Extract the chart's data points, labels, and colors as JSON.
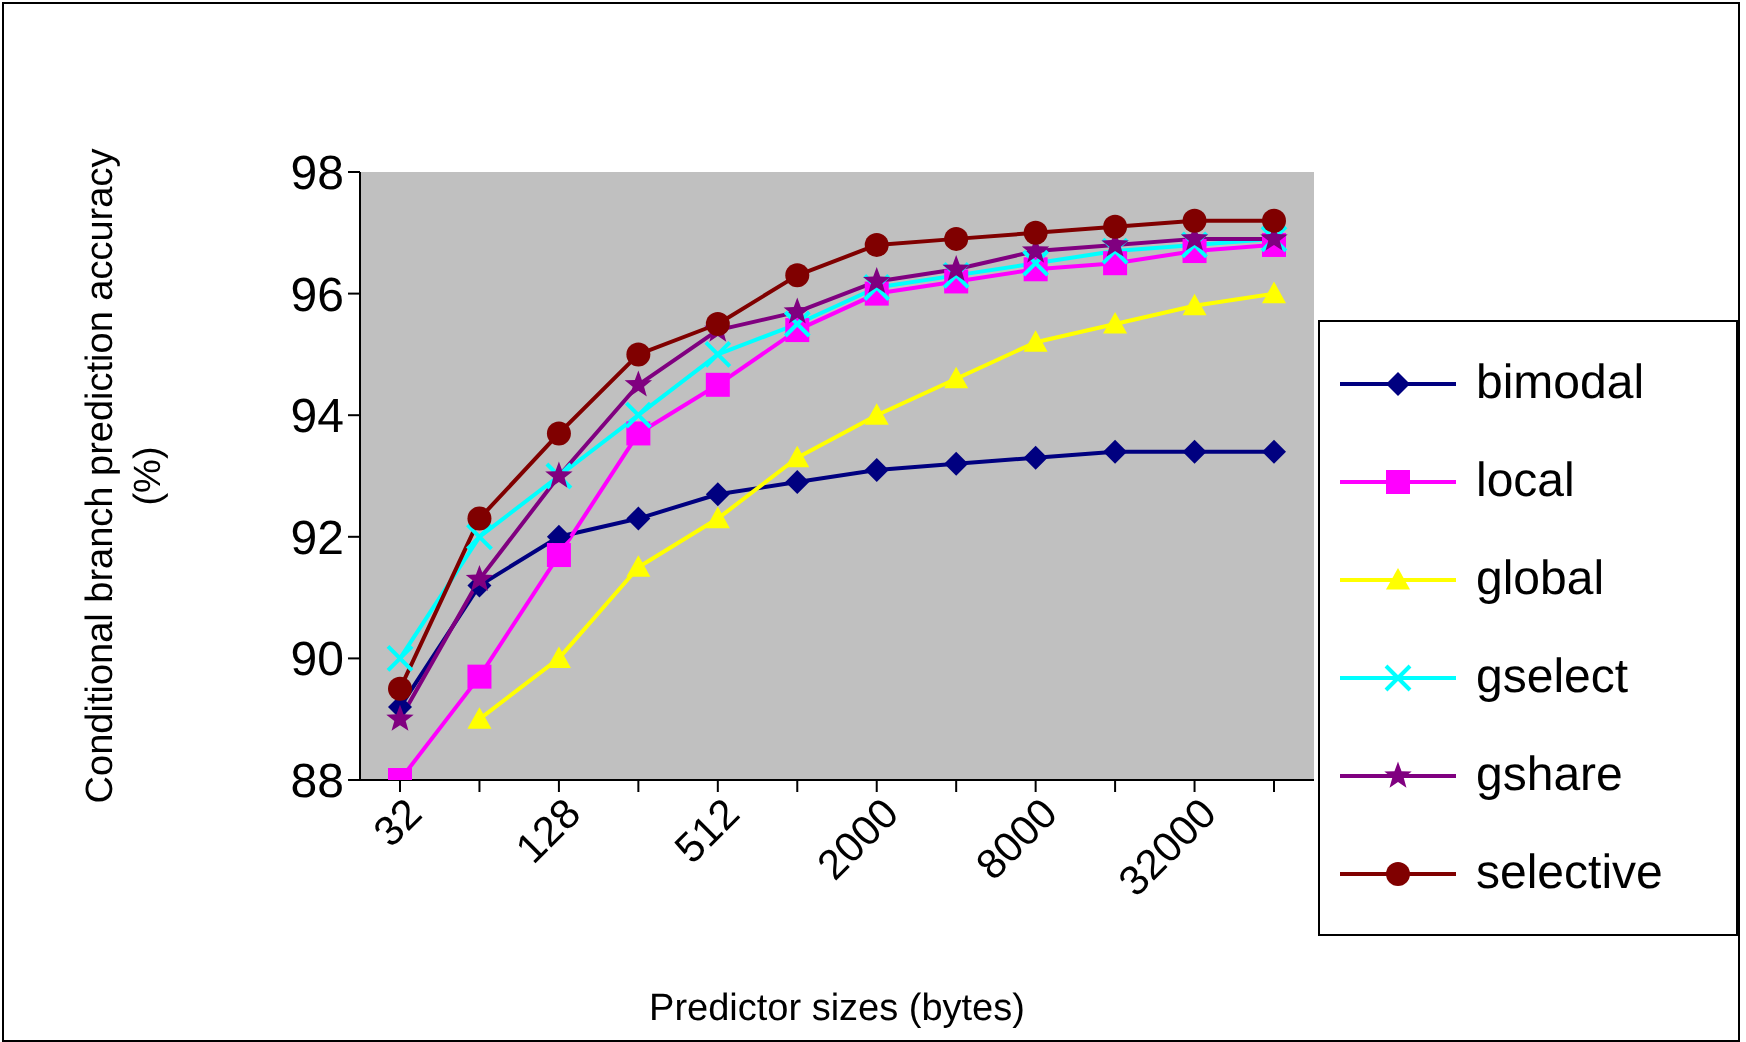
{
  "chart_data": {
    "type": "line",
    "xlabel": "Predictor sizes (bytes)",
    "ylabel": "Conditional branch prediction accuracy (%)",
    "categories": [
      "32",
      null,
      "128",
      null,
      "512",
      null,
      "2000",
      null,
      "8000",
      null,
      "32000",
      null
    ],
    "ylim": [
      88,
      98
    ],
    "yticks": [
      88,
      90,
      92,
      94,
      96,
      98
    ],
    "grid": false,
    "legend": "right",
    "series": [
      {
        "name": "bimodal",
        "color": "#000080",
        "marker": "diamond",
        "values": [
          89.2,
          91.2,
          92.0,
          92.3,
          92.7,
          92.9,
          93.1,
          93.2,
          93.3,
          93.4,
          93.4,
          93.4
        ]
      },
      {
        "name": "local",
        "color": "#ff00ff",
        "marker": "square",
        "values": [
          88.0,
          89.7,
          91.7,
          93.7,
          94.5,
          95.4,
          96.0,
          96.2,
          96.4,
          96.5,
          96.7,
          96.8
        ]
      },
      {
        "name": "global",
        "color": "#ffff00",
        "marker": "triangle",
        "values": [
          null,
          89.0,
          90.0,
          91.5,
          92.3,
          93.3,
          94.0,
          94.6,
          95.2,
          95.5,
          95.8,
          96.0
        ]
      },
      {
        "name": "gselect",
        "color": "#00ffff",
        "marker": "cross",
        "values": [
          90.0,
          92.0,
          93.0,
          94.0,
          95.0,
          95.5,
          96.1,
          96.3,
          96.5,
          96.7,
          96.8,
          96.9
        ]
      },
      {
        "name": "gshare",
        "color": "#800080",
        "marker": "star",
        "values": [
          89.0,
          91.3,
          93.0,
          94.5,
          95.4,
          95.7,
          96.2,
          96.4,
          96.7,
          96.8,
          96.9,
          96.9
        ]
      },
      {
        "name": "selective",
        "color": "#800000",
        "marker": "circle",
        "values": [
          89.5,
          92.3,
          93.7,
          95.0,
          95.5,
          96.3,
          96.8,
          96.9,
          97.0,
          97.1,
          97.2,
          97.2
        ]
      }
    ]
  }
}
